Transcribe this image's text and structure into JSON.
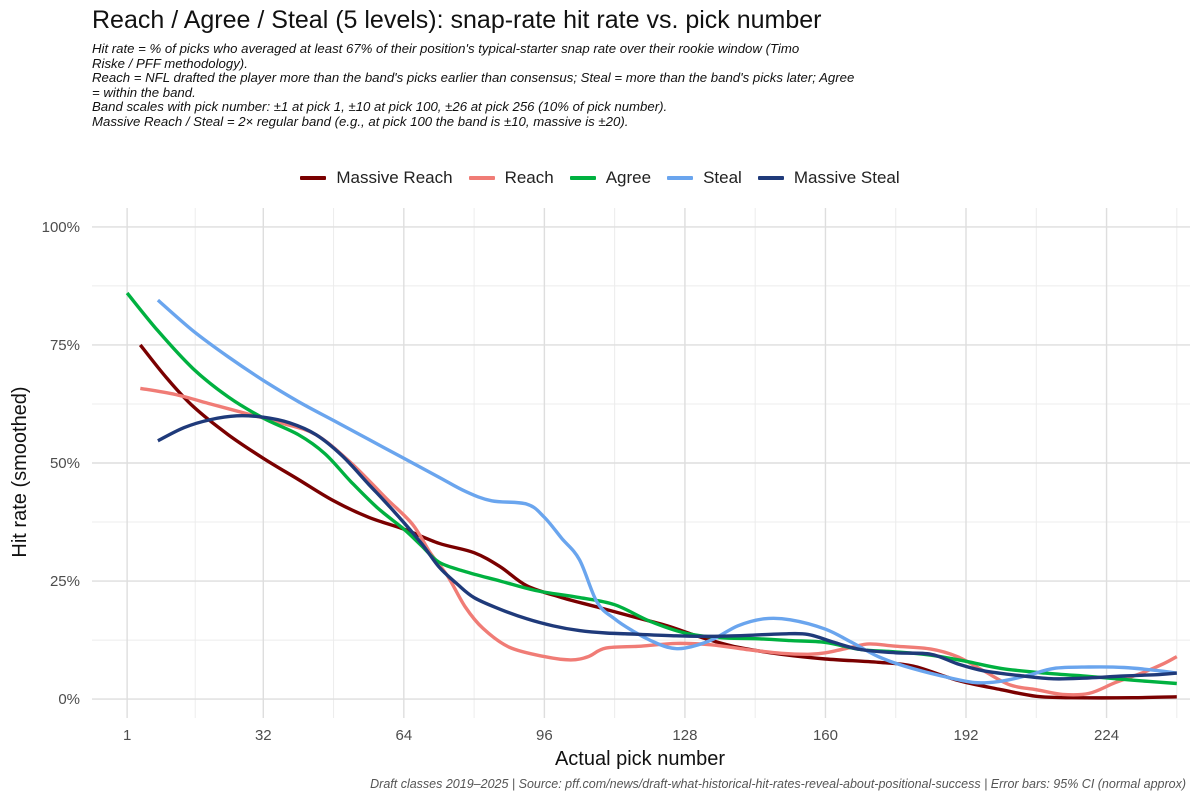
{
  "caption_text": "Draft classes 2019–2025   |   Source: pff.com/news/draft-what-historical-hit-rates-reveal-about-positional-success   |   Error bars: 95% CI (normal approx)",
  "chart_data": {
    "type": "line",
    "title": "Reach / Agree / Steal (5 levels): snap-rate hit rate vs. pick number",
    "subtitle_lines": [
      "Hit rate = % of picks who averaged at least 67% of their position's typical-starter snap rate over their rookie window (Timo",
      "Riske / PFF methodology).",
      "Reach = NFL drafted the player more than the band's picks earlier than consensus; Steal = more than the band's picks later; Agree",
      "= within the band.",
      "Band scales with pick number: ±1 at pick 1, ±10 at pick 100, ±26 at pick 256 (10% of pick number).",
      "Massive Reach / Steal = 2× regular band (e.g., at pick 100 the band is ±10, massive is ±20)."
    ],
    "xlabel": "Actual pick number",
    "ylabel": "Hit rate (smoothed)",
    "xlim": [
      -7,
      243
    ],
    "ylim": [
      -4,
      104
    ],
    "x_ticks": [
      1,
      32,
      64,
      96,
      128,
      160,
      192,
      224
    ],
    "x_tick_labels": [
      "1",
      "32",
      "64",
      "96",
      "128",
      "160",
      "192",
      "224"
    ],
    "y_ticks": [
      0,
      25,
      50,
      75,
      100
    ],
    "y_tick_labels": [
      "0%",
      "25%",
      "50%",
      "75%",
      "100%"
    ],
    "legend_position": "top-center",
    "series": [
      {
        "name": "Massive Reach",
        "color": "#7a0000",
        "points": [
          [
            4,
            75
          ],
          [
            10,
            68
          ],
          [
            16,
            62
          ],
          [
            24,
            56
          ],
          [
            32,
            51
          ],
          [
            40,
            46.5
          ],
          [
            48,
            42
          ],
          [
            56,
            38.5
          ],
          [
            64,
            36
          ],
          [
            72,
            33
          ],
          [
            80,
            31
          ],
          [
            86,
            28
          ],
          [
            92,
            24
          ],
          [
            100,
            21.5
          ],
          [
            108,
            19.5
          ],
          [
            116,
            17.5
          ],
          [
            124,
            15.5
          ],
          [
            132,
            13
          ],
          [
            140,
            11
          ],
          [
            150,
            9.5
          ],
          [
            160,
            8.5
          ],
          [
            172,
            7.8
          ],
          [
            180,
            7
          ],
          [
            190,
            4
          ],
          [
            200,
            2
          ],
          [
            208,
            0.6
          ],
          [
            216,
            0.3
          ],
          [
            230,
            0.3
          ],
          [
            240,
            0.5
          ]
        ]
      },
      {
        "name": "Reach",
        "color": "#f07c76",
        "points": [
          [
            4,
            65.8
          ],
          [
            12,
            64.5
          ],
          [
            20,
            62.5
          ],
          [
            28,
            60.5
          ],
          [
            36,
            58.5
          ],
          [
            44,
            56
          ],
          [
            52,
            50
          ],
          [
            60,
            42.5
          ],
          [
            66,
            37
          ],
          [
            70,
            31
          ],
          [
            74,
            26
          ],
          [
            78,
            19.5
          ],
          [
            82,
            15
          ],
          [
            88,
            11
          ],
          [
            96,
            9
          ],
          [
            102,
            8.3
          ],
          [
            106,
            9
          ],
          [
            110,
            10.8
          ],
          [
            118,
            11.2
          ],
          [
            126,
            11.8
          ],
          [
            134,
            11.5
          ],
          [
            142,
            10.5
          ],
          [
            150,
            9.7
          ],
          [
            156,
            9.5
          ],
          [
            160,
            9.8
          ],
          [
            166,
            11
          ],
          [
            170,
            11.7
          ],
          [
            176,
            11.2
          ],
          [
            184,
            10.6
          ],
          [
            190,
            9
          ],
          [
            196,
            6
          ],
          [
            202,
            3
          ],
          [
            208,
            2
          ],
          [
            214,
            1
          ],
          [
            220,
            1.2
          ],
          [
            226,
            3.5
          ],
          [
            232,
            5.5
          ],
          [
            237,
            7.5
          ],
          [
            240,
            9
          ]
        ]
      },
      {
        "name": "Agree",
        "color": "#00b140",
        "points": [
          [
            1,
            86
          ],
          [
            8,
            78
          ],
          [
            16,
            70
          ],
          [
            24,
            64
          ],
          [
            32,
            59.5
          ],
          [
            40,
            56
          ],
          [
            46,
            52
          ],
          [
            52,
            46
          ],
          [
            58,
            40.5
          ],
          [
            64,
            36
          ],
          [
            68,
            32.5
          ],
          [
            72,
            29
          ],
          [
            78,
            27
          ],
          [
            86,
            25
          ],
          [
            94,
            23
          ],
          [
            104,
            21.5
          ],
          [
            112,
            20
          ],
          [
            120,
            16.5
          ],
          [
            128,
            14
          ],
          [
            136,
            13
          ],
          [
            144,
            12.8
          ],
          [
            152,
            12.4
          ],
          [
            160,
            12
          ],
          [
            168,
            10.5
          ],
          [
            176,
            10
          ],
          [
            184,
            9.3
          ],
          [
            192,
            8
          ],
          [
            200,
            6.5
          ],
          [
            210,
            5.5
          ],
          [
            220,
            4.8
          ],
          [
            230,
            4
          ],
          [
            240,
            3.3
          ]
        ]
      },
      {
        "name": "Steal",
        "color": "#6aa5ee",
        "points": [
          [
            8,
            84.5
          ],
          [
            16,
            78
          ],
          [
            24,
            72.5
          ],
          [
            32,
            67.5
          ],
          [
            40,
            63
          ],
          [
            48,
            59
          ],
          [
            56,
            55
          ],
          [
            64,
            51
          ],
          [
            72,
            47
          ],
          [
            78,
            44
          ],
          [
            84,
            42
          ],
          [
            92,
            41.3
          ],
          [
            96,
            38.5
          ],
          [
            100,
            34
          ],
          [
            104,
            29.5
          ],
          [
            108,
            20.5
          ],
          [
            112,
            17
          ],
          [
            116,
            14.5
          ],
          [
            120,
            12.5
          ],
          [
            124,
            11
          ],
          [
            128,
            10.8
          ],
          [
            134,
            12.5
          ],
          [
            140,
            15.5
          ],
          [
            146,
            17
          ],
          [
            152,
            16.8
          ],
          [
            160,
            14.8
          ],
          [
            166,
            12
          ],
          [
            172,
            9
          ],
          [
            178,
            7
          ],
          [
            186,
            5
          ],
          [
            194,
            3.5
          ],
          [
            200,
            3.8
          ],
          [
            206,
            5
          ],
          [
            212,
            6.5
          ],
          [
            220,
            6.8
          ],
          [
            228,
            6.7
          ],
          [
            236,
            6
          ],
          [
            240,
            5.5
          ]
        ]
      },
      {
        "name": "Massive Steal",
        "color": "#1f3a7a",
        "points": [
          [
            8,
            54.7
          ],
          [
            14,
            57.5
          ],
          [
            20,
            59.2
          ],
          [
            26,
            60
          ],
          [
            32,
            59.7
          ],
          [
            38,
            58.5
          ],
          [
            44,
            56
          ],
          [
            50,
            51.5
          ],
          [
            56,
            45.5
          ],
          [
            62,
            39.5
          ],
          [
            68,
            33
          ],
          [
            72,
            28
          ],
          [
            76,
            24.5
          ],
          [
            80,
            21.5
          ],
          [
            86,
            19
          ],
          [
            92,
            17
          ],
          [
            98,
            15.5
          ],
          [
            104,
            14.5
          ],
          [
            110,
            14
          ],
          [
            118,
            13.7
          ],
          [
            126,
            13.4
          ],
          [
            134,
            13.3
          ],
          [
            142,
            13.5
          ],
          [
            150,
            13.8
          ],
          [
            156,
            13.7
          ],
          [
            162,
            12
          ],
          [
            168,
            10.5
          ],
          [
            176,
            9.8
          ],
          [
            184,
            9.5
          ],
          [
            190,
            7.5
          ],
          [
            196,
            6
          ],
          [
            204,
            5
          ],
          [
            212,
            4.3
          ],
          [
            220,
            4.5
          ],
          [
            228,
            4.9
          ],
          [
            236,
            5.2
          ],
          [
            240,
            5.5
          ]
        ]
      }
    ]
  }
}
